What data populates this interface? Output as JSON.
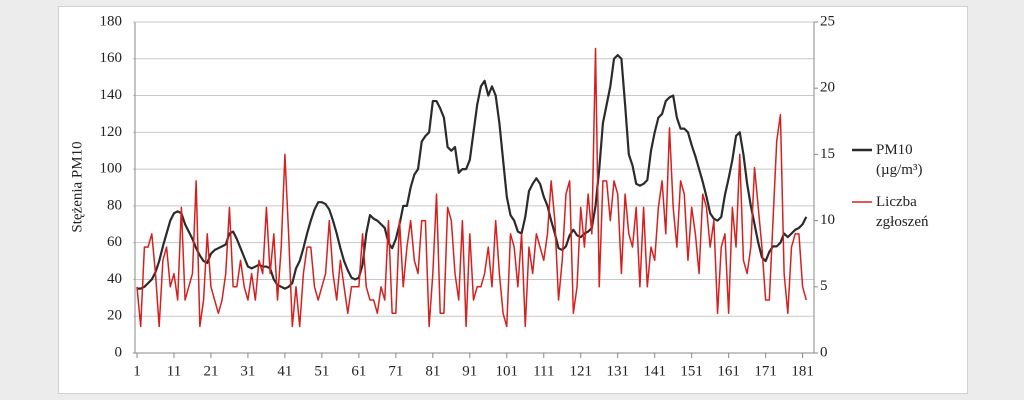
{
  "chart_data": {
    "type": "line",
    "y_label": "Stężenia PM10",
    "xlim": [
      1,
      183
    ],
    "xticks": [
      1,
      11,
      21,
      31,
      41,
      51,
      61,
      71,
      81,
      91,
      101,
      111,
      121,
      131,
      141,
      151,
      161,
      171,
      181
    ],
    "ylim": [
      0,
      180
    ],
    "yticks": [
      0,
      20,
      40,
      60,
      80,
      100,
      120,
      140,
      160,
      180
    ],
    "y2lim": [
      0,
      25
    ],
    "y2ticks": [
      0,
      5,
      10,
      15,
      20,
      25
    ],
    "grid": true,
    "legend": "right",
    "x": [
      1,
      2,
      3,
      4,
      5,
      6,
      7,
      8,
      9,
      10,
      11,
      12,
      13,
      14,
      15,
      16,
      17,
      18,
      19,
      20,
      21,
      22,
      23,
      24,
      25,
      26,
      27,
      28,
      29,
      30,
      31,
      32,
      33,
      34,
      35,
      36,
      37,
      38,
      39,
      40,
      41,
      42,
      43,
      44,
      45,
      46,
      47,
      48,
      49,
      50,
      51,
      52,
      53,
      54,
      55,
      56,
      57,
      58,
      59,
      60,
      61,
      62,
      63,
      64,
      65,
      66,
      67,
      68,
      69,
      70,
      71,
      72,
      73,
      74,
      75,
      76,
      77,
      78,
      79,
      80,
      81,
      82,
      83,
      84,
      85,
      86,
      87,
      88,
      89,
      90,
      91,
      92,
      93,
      94,
      95,
      96,
      97,
      98,
      99,
      100,
      101,
      102,
      103,
      104,
      105,
      106,
      107,
      108,
      109,
      110,
      111,
      112,
      113,
      114,
      115,
      116,
      117,
      118,
      119,
      120,
      121,
      122,
      123,
      124,
      125,
      126,
      127,
      128,
      129,
      130,
      131,
      132,
      133,
      134,
      135,
      136,
      137,
      138,
      139,
      140,
      141,
      142,
      143,
      144,
      145,
      146,
      147,
      148,
      149,
      150,
      151,
      152,
      153,
      154,
      155,
      156,
      157,
      158,
      159,
      160,
      161,
      162,
      163,
      164,
      165,
      166,
      167,
      168,
      169,
      170,
      171,
      172,
      173,
      174,
      175,
      176,
      177,
      178,
      179,
      180,
      181,
      182
    ],
    "series": [
      {
        "name": "PM10 (µg/m³)",
        "color": "#2b2b2b",
        "axis": "y",
        "values": [
          35,
          35,
          36,
          38,
          40,
          44,
          50,
          58,
          65,
          72,
          76,
          77,
          76,
          70,
          66,
          62,
          57,
          53,
          50,
          49,
          54,
          56,
          57,
          58,
          59,
          65,
          66,
          62,
          57,
          52,
          47,
          46,
          47,
          48,
          47,
          47,
          46,
          40,
          37,
          36,
          35,
          36,
          38,
          46,
          50,
          57,
          65,
          72,
          78,
          82,
          82,
          81,
          78,
          72,
          65,
          57,
          50,
          45,
          41,
          40,
          41,
          48,
          65,
          75,
          73,
          72,
          70,
          68,
          60,
          57,
          62,
          70,
          80,
          80,
          90,
          97,
          100,
          115,
          118,
          120,
          137,
          137,
          133,
          128,
          112,
          110,
          112,
          98,
          100,
          100,
          105,
          120,
          135,
          145,
          148,
          140,
          145,
          140,
          125,
          105,
          85,
          75,
          72,
          66,
          65,
          74,
          88,
          92,
          95,
          92,
          85,
          80,
          72,
          65,
          57,
          56,
          58,
          64,
          67,
          64,
          63,
          65,
          66,
          68,
          80,
          100,
          125,
          135,
          145,
          160,
          162,
          160,
          135,
          108,
          102,
          92,
          91,
          92,
          94,
          110,
          120,
          128,
          130,
          137,
          139,
          140,
          128,
          122,
          122,
          120,
          113,
          107,
          100,
          93,
          85,
          76,
          73,
          72,
          74,
          86,
          95,
          105,
          118,
          120,
          108,
          92,
          80,
          70,
          60,
          52,
          50,
          55,
          58,
          58,
          60,
          65,
          63,
          65,
          67,
          68,
          70,
          74
        ]
      },
      {
        "name": "Liczba zgłoszeń",
        "color": "#d62020",
        "axis": "y2",
        "values": [
          5,
          2,
          8,
          8,
          9,
          6,
          2,
          7,
          8,
          5,
          6,
          4,
          11,
          4,
          5,
          6,
          13,
          2,
          4,
          9,
          5,
          4,
          3,
          4,
          6,
          11,
          5,
          5,
          7,
          5,
          4,
          6,
          4,
          7,
          6,
          11,
          6,
          9,
          4,
          8,
          15,
          9,
          2,
          5,
          2,
          6,
          8,
          8,
          5,
          4,
          5,
          6,
          10,
          6,
          4,
          7,
          5,
          3,
          5,
          5,
          5,
          9,
          5,
          4,
          4,
          3,
          5,
          4,
          10,
          3,
          3,
          10,
          5,
          8,
          10,
          7,
          6,
          10,
          10,
          2,
          6,
          12,
          3,
          3,
          11,
          10,
          6,
          4,
          10,
          2,
          9,
          4,
          5,
          5,
          6,
          8,
          5,
          10,
          6,
          3,
          2,
          9,
          8,
          5,
          9,
          2,
          8,
          6,
          9,
          8,
          7,
          9,
          13,
          10,
          4,
          7,
          12,
          13,
          3,
          5,
          11,
          8,
          12,
          9,
          23,
          5,
          13,
          13,
          10,
          13,
          12,
          6,
          12,
          9,
          8,
          11,
          5,
          11,
          5,
          8,
          7,
          11,
          13,
          9,
          17,
          11,
          8,
          13,
          12,
          7,
          11,
          9,
          6,
          12,
          11,
          8,
          10,
          3,
          8,
          9,
          3,
          11,
          8,
          15,
          7,
          6,
          8,
          14,
          11,
          8,
          4,
          4,
          10,
          16,
          18,
          6,
          3,
          8,
          9,
          9,
          5,
          4
        ]
      }
    ]
  }
}
